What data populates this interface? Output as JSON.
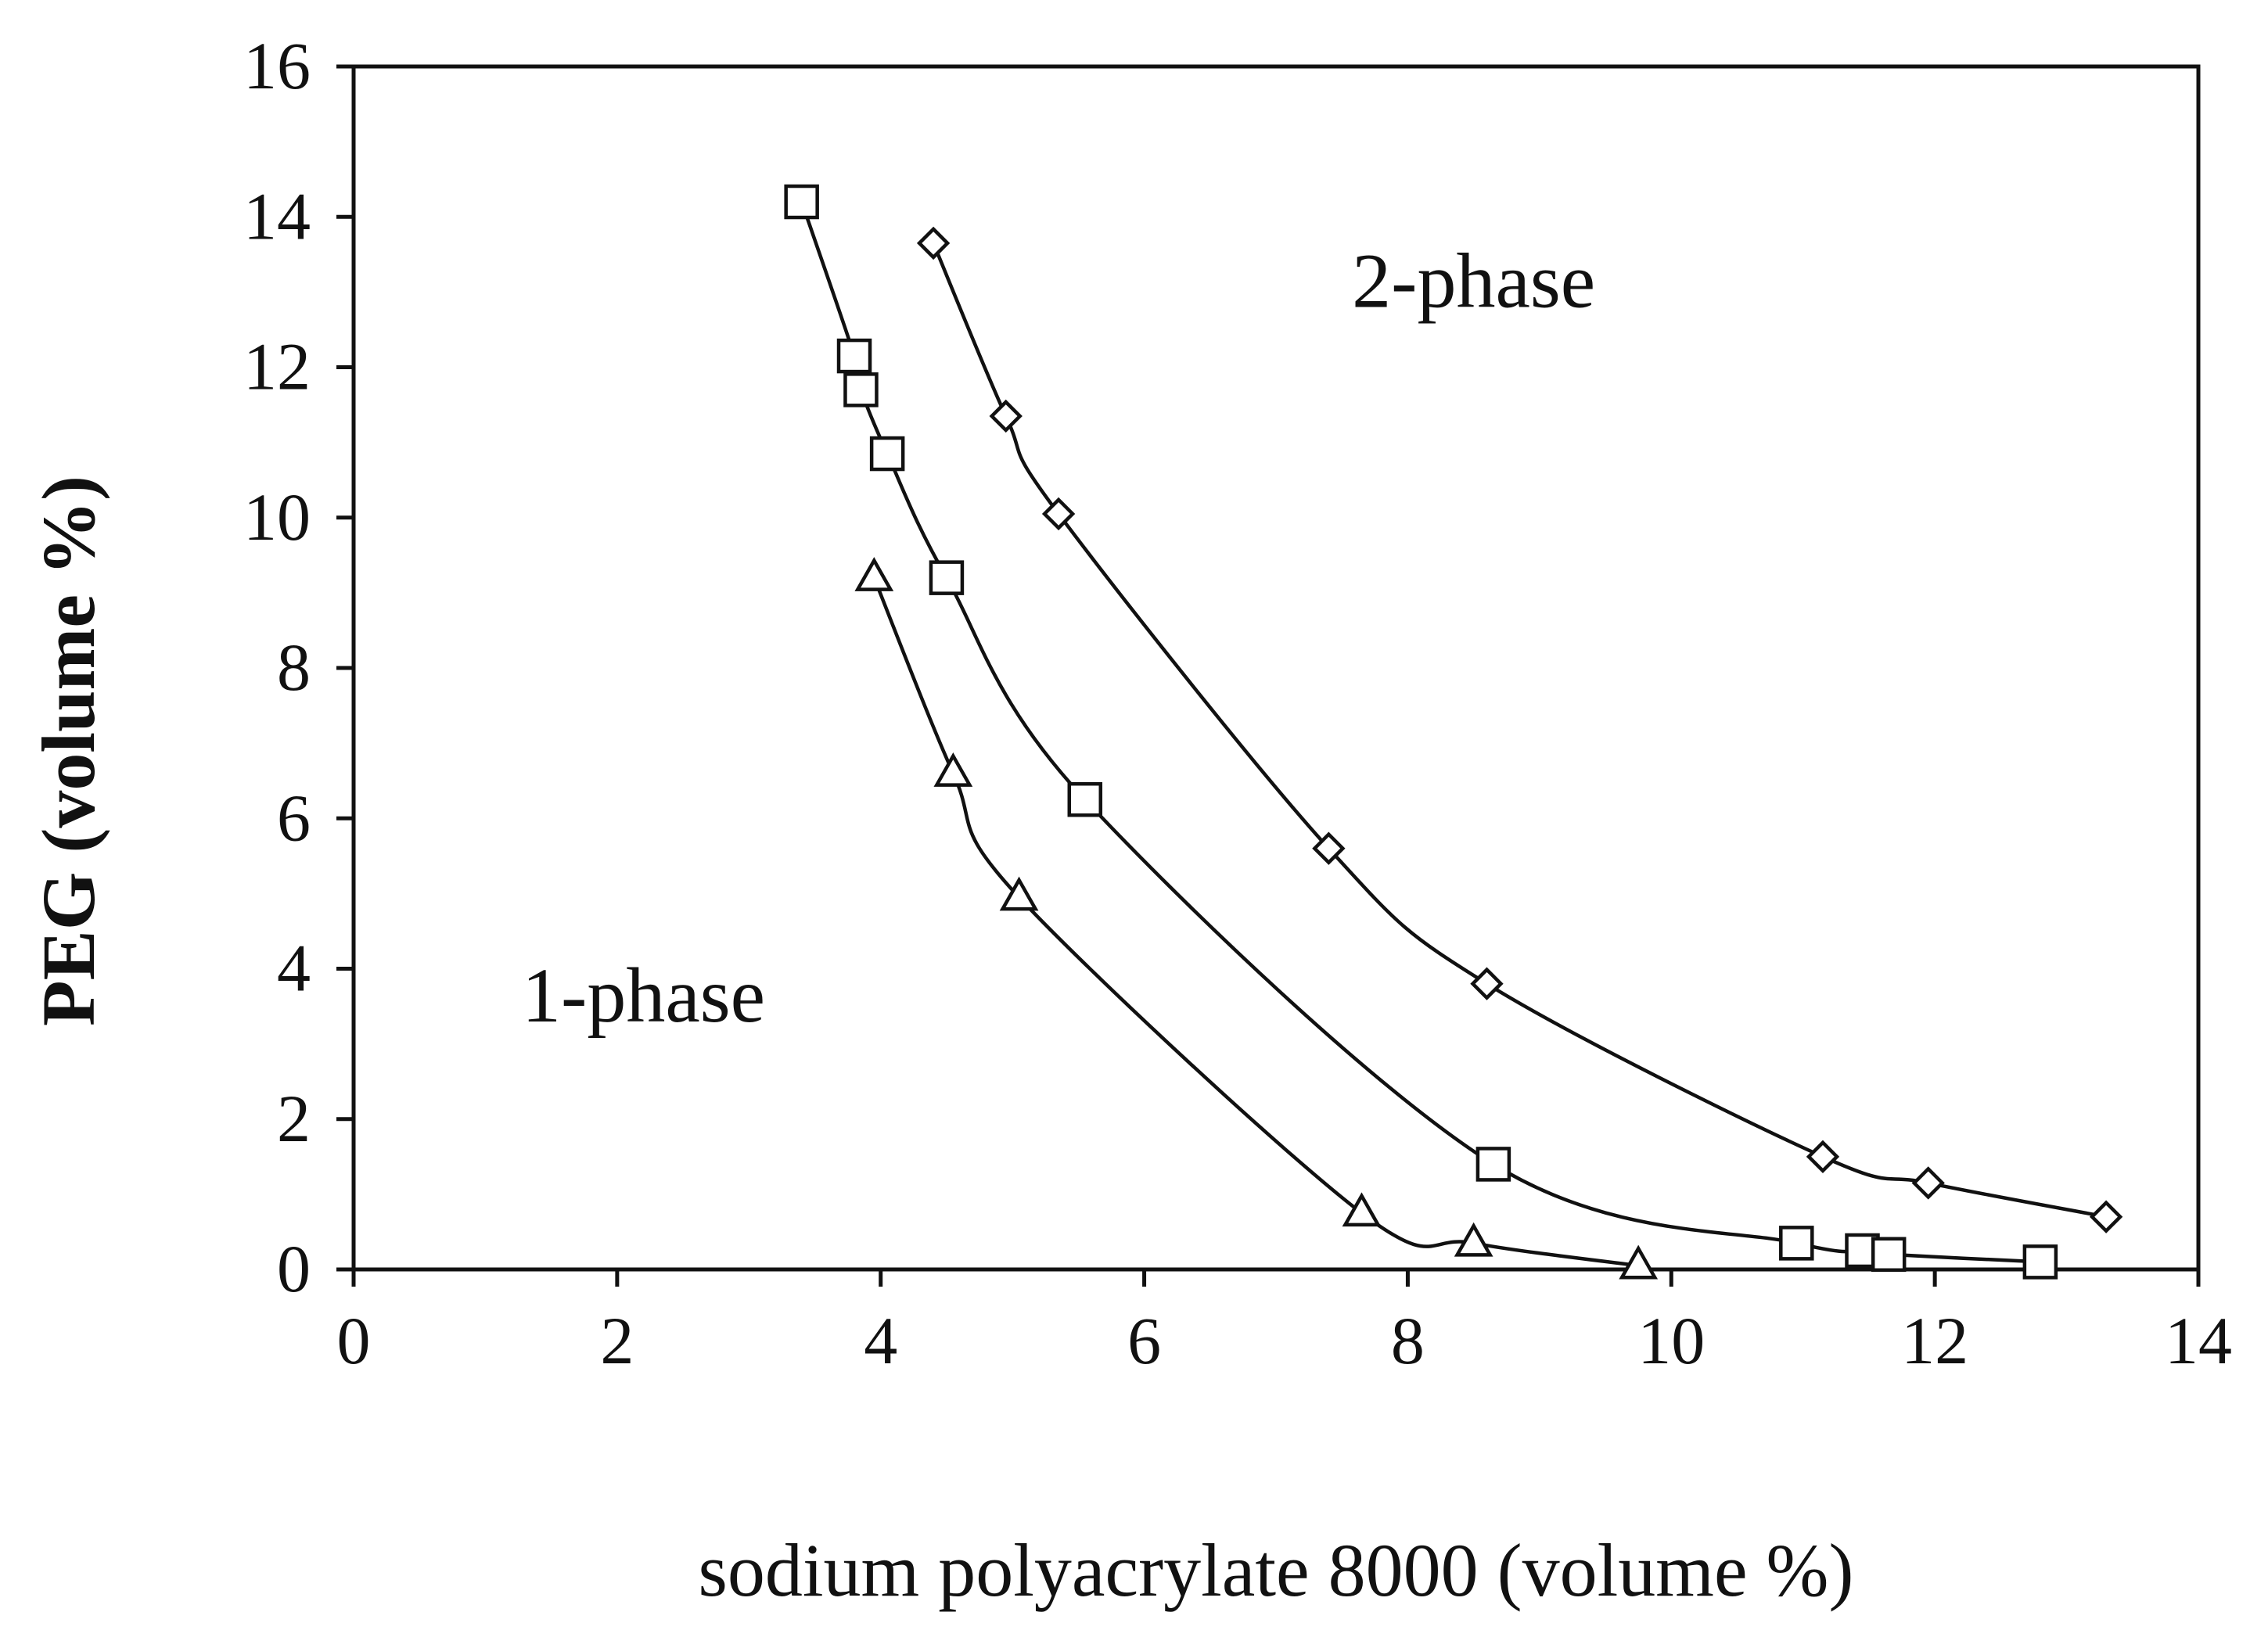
{
  "chart_data": {
    "type": "line",
    "xlabel": "sodium polyacrylate 8000 (volume %)",
    "ylabel": "PEG (volume %)",
    "xlim": [
      0,
      14
    ],
    "ylim": [
      0,
      16
    ],
    "x_ticks": [
      "0",
      "2",
      "4",
      "6",
      "8",
      "10",
      "12",
      "14"
    ],
    "y_ticks": [
      "0",
      "2",
      "4",
      "6",
      "8",
      "10",
      "12",
      "14",
      "16"
    ],
    "grid": false,
    "legend": "none",
    "annotations": [
      {
        "text": "2-phase",
        "x": 8.5,
        "y": 12.8
      },
      {
        "text": "1-phase",
        "x": 2.2,
        "y": 3.3
      }
    ],
    "series": [
      {
        "marker": "diamond",
        "x": [
          4.4,
          4.95,
          5.35,
          7.4,
          8.6,
          11.15,
          11.95,
          13.3
        ],
        "y": [
          13.65,
          11.35,
          10.05,
          5.6,
          3.8,
          1.5,
          1.15,
          0.7
        ]
      },
      {
        "marker": "square",
        "x": [
          3.4,
          3.8,
          3.85,
          4.05,
          4.5,
          5.55,
          8.65,
          10.95,
          11.45,
          11.65,
          12.8
        ],
        "y": [
          14.2,
          12.15,
          11.7,
          10.85,
          9.2,
          6.25,
          1.4,
          0.35,
          0.25,
          0.2,
          0.1
        ]
      },
      {
        "marker": "triangle",
        "x": [
          3.95,
          4.55,
          5.05,
          7.65,
          8.5,
          9.75
        ],
        "y": [
          9.2,
          6.6,
          4.95,
          0.75,
          0.35,
          0.05
        ]
      }
    ]
  }
}
